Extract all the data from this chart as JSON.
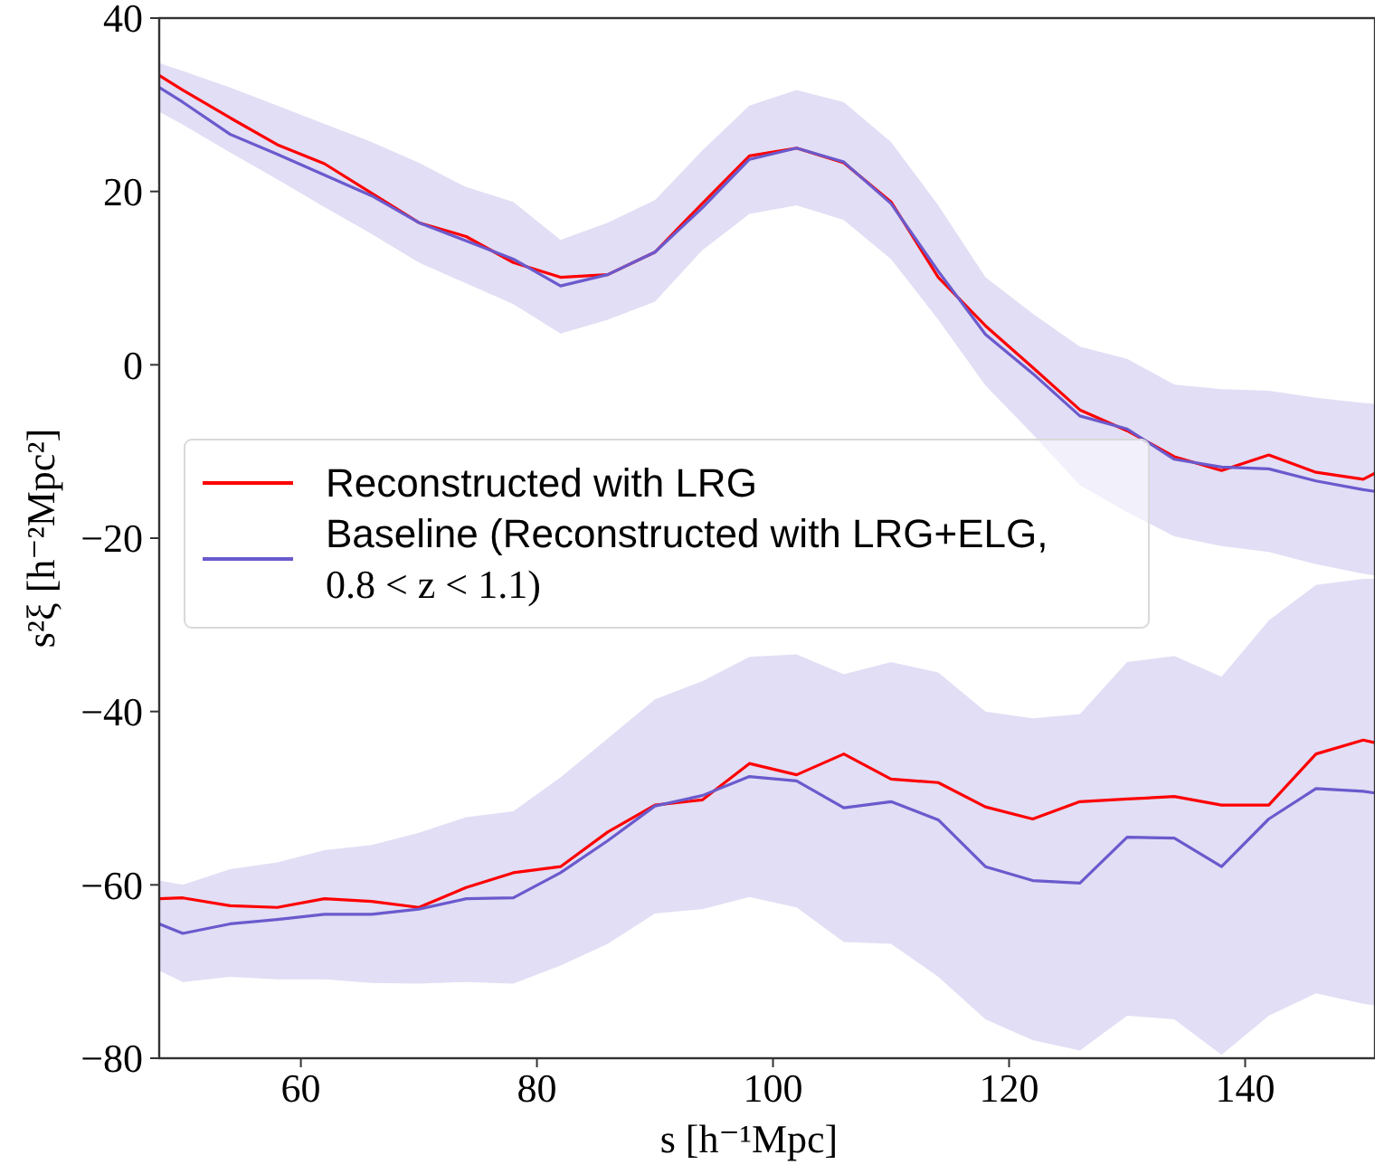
{
  "chart_data": {
    "type": "line",
    "xlabel": "s [h⁻¹Mpc]",
    "ylabel": "s²ξ [h⁻²Mpc²]",
    "x": [
      48,
      50,
      54,
      58,
      62,
      66,
      70,
      74,
      78,
      82,
      86,
      90,
      94,
      98,
      102,
      106,
      110,
      114,
      118,
      122,
      126,
      130,
      134,
      138,
      142,
      146,
      150,
      151
    ],
    "xlim": [
      48,
      151
    ],
    "xticks": [
      60,
      80,
      100,
      120,
      140
    ],
    "ylim": [
      -80,
      40
    ],
    "yticks": [
      -80,
      -60,
      -40,
      -20,
      0,
      20,
      40
    ],
    "grid": false,
    "legend": "center left",
    "line_style": "solid",
    "marker": "none",
    "series": [
      {
        "name": "Reconstructed with LRG",
        "color": "#ff0000",
        "values": [
          33.4,
          31.7,
          28.5,
          25.4,
          23.2,
          19.8,
          16.4,
          14.8,
          11.8,
          10.1,
          10.4,
          13.0,
          18.6,
          24.1,
          25.0,
          23.3,
          18.8,
          10.1,
          4.5,
          -0.3,
          -5.2,
          -7.6,
          -10.6,
          -12.2,
          -10.4,
          -12.4,
          -13.2,
          -12.5
        ]
      },
      {
        "name": "Baseline (Reconstructed with LRG+ELG, 0.8 < z < 1.1)",
        "color": "#6a5acd",
        "values": [
          32.0,
          30.3,
          26.6,
          24.3,
          21.9,
          19.5,
          16.4,
          14.3,
          12.2,
          9.1,
          10.4,
          13.0,
          18.1,
          23.7,
          25.0,
          23.4,
          18.6,
          10.8,
          3.5,
          -1.0,
          -5.9,
          -7.4,
          -10.9,
          -11.8,
          -12.0,
          -13.4,
          -14.4,
          -14.6
        ],
        "lower": [
          29.2,
          27.7,
          24.5,
          21.4,
          18.2,
          15.1,
          11.8,
          9.4,
          7.0,
          3.6,
          5.2,
          7.3,
          13.2,
          17.4,
          18.4,
          16.7,
          12.2,
          5.2,
          -2.4,
          -8.0,
          -13.9,
          -17.0,
          -19.8,
          -20.9,
          -21.6,
          -23.0,
          -24.1,
          -24.3
        ],
        "upper": [
          34.8,
          33.9,
          32.0,
          29.9,
          27.8,
          25.7,
          23.3,
          20.5,
          18.8,
          14.4,
          16.4,
          19.0,
          24.7,
          29.9,
          31.7,
          30.3,
          25.7,
          18.4,
          10.1,
          5.9,
          2.1,
          0.7,
          -2.3,
          -2.8,
          -3.0,
          -3.8,
          -4.4,
          -4.5
        ]
      },
      {
        "color": "#ff0000",
        "values": [
          -61.6,
          -61.5,
          -62.4,
          -62.6,
          -61.6,
          -61.9,
          -62.6,
          -60.3,
          -58.6,
          -57.9,
          -53.9,
          -50.8,
          -50.2,
          -46.0,
          -47.3,
          -44.9,
          -47.8,
          -48.2,
          -51.0,
          -52.4,
          -50.4,
          -50.1,
          -49.8,
          -50.8,
          -50.8,
          -44.9,
          -43.3,
          -43.6
        ]
      },
      {
        "color": "#6a5acd",
        "values": [
          -64.5,
          -65.6,
          -64.5,
          -64.0,
          -63.4,
          -63.4,
          -62.8,
          -61.6,
          -61.5,
          -58.6,
          -54.9,
          -50.9,
          -49.7,
          -47.5,
          -48.0,
          -51.1,
          -50.4,
          -52.5,
          -57.9,
          -59.5,
          -59.8,
          -54.5,
          -54.6,
          -57.9,
          -52.4,
          -48.9,
          -49.2,
          -49.4
        ],
        "lower": [
          -69.9,
          -71.2,
          -70.6,
          -70.9,
          -70.9,
          -71.3,
          -71.4,
          -71.2,
          -71.4,
          -69.3,
          -66.8,
          -63.3,
          -62.8,
          -61.4,
          -62.6,
          -66.6,
          -66.8,
          -70.6,
          -75.5,
          -77.9,
          -79.1,
          -75.1,
          -75.5,
          -79.6,
          -75.1,
          -72.5,
          -73.7,
          -73.9
        ],
        "upper": [
          -59.5,
          -60.0,
          -58.2,
          -57.4,
          -56.0,
          -55.4,
          -54.0,
          -52.2,
          -51.5,
          -47.6,
          -43.1,
          -38.6,
          -36.5,
          -33.7,
          -33.4,
          -35.7,
          -34.3,
          -35.5,
          -40.0,
          -40.8,
          -40.3,
          -34.3,
          -33.6,
          -36.0,
          -29.5,
          -25.4,
          -24.7,
          -24.7
        ]
      }
    ]
  }
}
